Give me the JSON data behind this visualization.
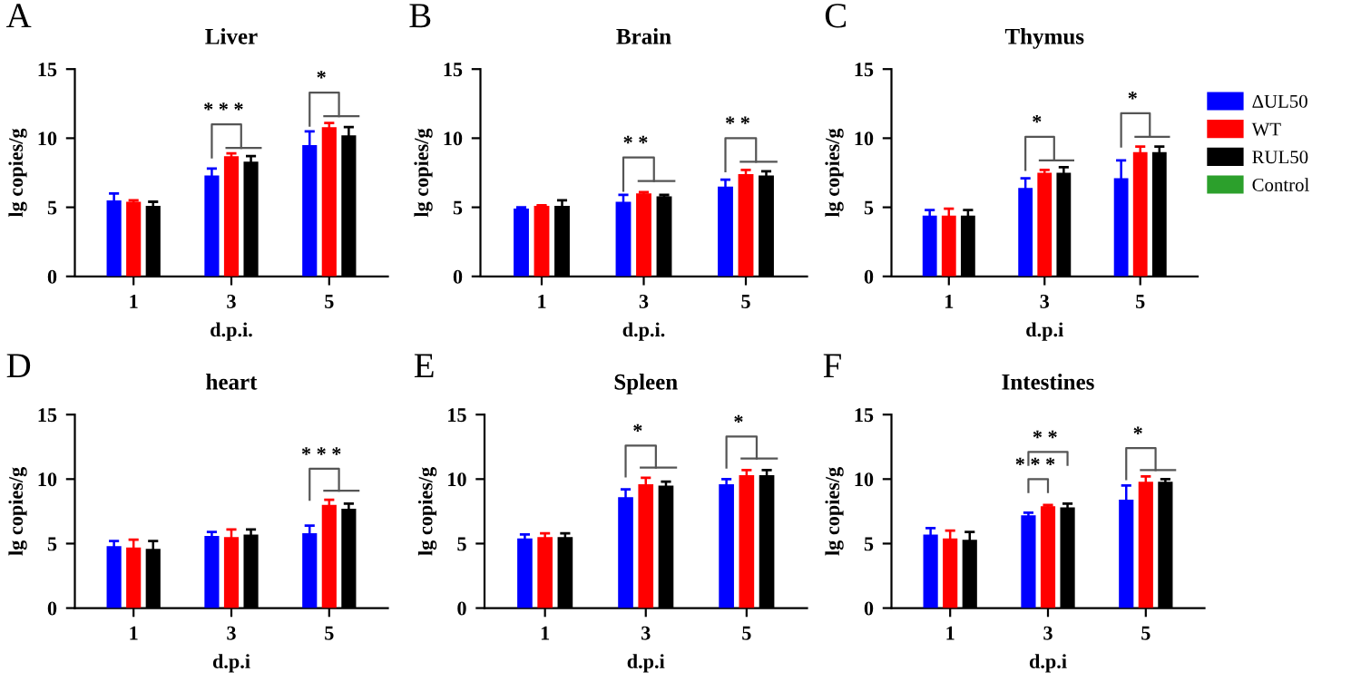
{
  "chart_data": [
    {
      "type": "bar",
      "title": "Liver",
      "xlabel": "d.p.i.",
      "ylabel": "lg copies/g",
      "categories": [
        "1",
        "3",
        "5"
      ],
      "ylim": [
        0,
        15
      ],
      "yticks": [
        0,
        5,
        10,
        15
      ],
      "grid": false,
      "series": [
        {
          "color": "#0000ff",
          "values": [
            5.5,
            7.3,
            9.5
          ],
          "errors": [
            0.5,
            0.5,
            1.0
          ]
        },
        {
          "color": "#ff0000",
          "values": [
            5.4,
            8.7,
            10.8
          ],
          "errors": [
            0.1,
            0.2,
            0.3
          ]
        },
        {
          "color": "#000000",
          "values": [
            5.1,
            8.3,
            10.2
          ],
          "errors": [
            0.3,
            0.4,
            0.6
          ]
        }
      ],
      "annotations": [
        "A",
        "* * *",
        "*"
      ]
    },
    {
      "type": "bar",
      "title": "Brain",
      "xlabel": "d.p.i.",
      "ylabel": "lg copies/g",
      "categories": [
        "1",
        "3",
        "5"
      ],
      "ylim": [
        0,
        15
      ],
      "yticks": [
        0,
        5,
        10,
        15
      ],
      "grid": false,
      "series": [
        {
          "color": "#0000ff",
          "values": [
            4.9,
            5.4,
            6.5
          ],
          "errors": [
            0.1,
            0.5,
            0.5
          ]
        },
        {
          "color": "#ff0000",
          "values": [
            5.1,
            6.0,
            7.4
          ],
          "errors": [
            0.05,
            0.1,
            0.3
          ]
        },
        {
          "color": "#000000",
          "values": [
            5.1,
            5.8,
            7.3
          ],
          "errors": [
            0.4,
            0.1,
            0.3
          ]
        }
      ],
      "annotations": [
        "B",
        "* *",
        "* *"
      ]
    },
    {
      "type": "bar",
      "title": "Thymus",
      "xlabel": "d.p.i",
      "ylabel": "lg copies/g",
      "categories": [
        "1",
        "3",
        "5"
      ],
      "ylim": [
        0,
        15
      ],
      "yticks": [
        0,
        5,
        10,
        15
      ],
      "grid": false,
      "legend": "right",
      "series": [
        {
          "name": "ΔUL50",
          "color": "#0000ff",
          "values": [
            4.4,
            6.4,
            7.1
          ],
          "errors": [
            0.4,
            0.7,
            1.3
          ]
        },
        {
          "name": "WT",
          "color": "#ff0000",
          "values": [
            4.4,
            7.5,
            9.0
          ],
          "errors": [
            0.5,
            0.2,
            0.4
          ]
        },
        {
          "name": "RUL50",
          "color": "#000000",
          "values": [
            4.4,
            7.5,
            9.0
          ],
          "errors": [
            0.4,
            0.4,
            0.4
          ]
        },
        {
          "name": "Control",
          "color": "#2ca02c",
          "values": [
            null,
            null,
            null
          ]
        }
      ],
      "annotations": [
        "C",
        "*",
        "*"
      ]
    },
    {
      "type": "bar",
      "title": "heart",
      "xlabel": "d.p.i",
      "ylabel": "lg copies/g",
      "categories": [
        "1",
        "3",
        "5"
      ],
      "ylim": [
        0,
        15
      ],
      "yticks": [
        0,
        5,
        10,
        15
      ],
      "grid": false,
      "series": [
        {
          "color": "#0000ff",
          "values": [
            4.8,
            5.6,
            5.8
          ],
          "errors": [
            0.4,
            0.3,
            0.6
          ]
        },
        {
          "color": "#ff0000",
          "values": [
            4.7,
            5.5,
            8.0
          ],
          "errors": [
            0.6,
            0.6,
            0.4
          ]
        },
        {
          "color": "#000000",
          "values": [
            4.6,
            5.7,
            7.7
          ],
          "errors": [
            0.6,
            0.4,
            0.4
          ]
        }
      ],
      "annotations": [
        "D",
        "* * *"
      ]
    },
    {
      "type": "bar",
      "title": "Spleen",
      "xlabel": "d.p.i",
      "ylabel": "lg copies/g",
      "categories": [
        "1",
        "3",
        "5"
      ],
      "ylim": [
        0,
        15
      ],
      "yticks": [
        0,
        5,
        10,
        15
      ],
      "grid": false,
      "series": [
        {
          "color": "#0000ff",
          "values": [
            5.4,
            8.6,
            9.6
          ],
          "errors": [
            0.3,
            0.6,
            0.4
          ]
        },
        {
          "color": "#ff0000",
          "values": [
            5.5,
            9.6,
            10.3
          ],
          "errors": [
            0.3,
            0.5,
            0.4
          ]
        },
        {
          "color": "#000000",
          "values": [
            5.5,
            9.5,
            10.3
          ],
          "errors": [
            0.3,
            0.3,
            0.4
          ]
        }
      ],
      "annotations": [
        "E",
        "*",
        "*"
      ]
    },
    {
      "type": "bar",
      "title": "Intestines",
      "xlabel": "d.p.i",
      "ylabel": "lg copies/g",
      "categories": [
        "1",
        "3",
        "5"
      ],
      "ylim": [
        0,
        15
      ],
      "yticks": [
        0,
        5,
        10,
        15
      ],
      "grid": false,
      "series": [
        {
          "color": "#0000ff",
          "values": [
            5.7,
            7.2,
            8.4
          ],
          "errors": [
            0.5,
            0.2,
            1.1
          ]
        },
        {
          "color": "#ff0000",
          "values": [
            5.4,
            7.9,
            9.8
          ],
          "errors": [
            0.6,
            0.1,
            0.4
          ]
        },
        {
          "color": "#000000",
          "values": [
            5.3,
            7.8,
            9.8
          ],
          "errors": [
            0.6,
            0.3,
            0.2
          ]
        }
      ],
      "annotations": [
        "F",
        "* * *",
        "* *",
        "*"
      ]
    }
  ]
}
